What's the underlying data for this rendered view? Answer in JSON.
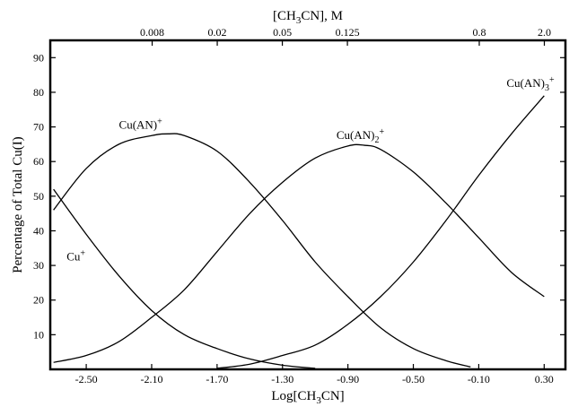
{
  "chart_data": {
    "type": "line",
    "title": "",
    "xlabel": "Log[CH3CN]",
    "xlabel_parts": [
      "Log[CH",
      "3",
      "CN]"
    ],
    "ylabel": "Percentage of Total Cu(I)",
    "top_xlabel": "[CH3CN], M",
    "top_xlabel_parts": [
      "[CH",
      "3",
      "CN], M"
    ],
    "xlim": [
      -2.72,
      0.43
    ],
    "ylim": [
      0,
      95
    ],
    "x_ticks": [
      -2.5,
      -2.1,
      -1.7,
      -1.3,
      -0.9,
      -0.5,
      -0.1,
      0.3
    ],
    "x_tick_labels": [
      "-2.50",
      "-2.10",
      "-1.70",
      "-1.30",
      "-0.90",
      "-0.50",
      "-0.10",
      "0.30"
    ],
    "y_ticks": [
      10,
      20,
      30,
      40,
      50,
      60,
      70,
      80,
      90
    ],
    "y_tick_labels": [
      "10",
      "20",
      "30",
      "40",
      "50",
      "60",
      "70",
      "80",
      "90"
    ],
    "top_ticks": [
      {
        "label": "0.008",
        "value": 0.008
      },
      {
        "label": "0.02",
        "value": 0.02
      },
      {
        "label": "0.05",
        "value": 0.05
      },
      {
        "label": "0.125",
        "value": 0.125
      },
      {
        "label": "0.8",
        "value": 0.8
      },
      {
        "label": "2.0",
        "value": 2.0
      }
    ],
    "grid": false,
    "legend": "none",
    "series": [
      {
        "name": "Cu+",
        "label_parts": [
          {
            "t": "Cu"
          },
          {
            "t": "+",
            "sup": true
          }
        ],
        "label_at": [
          -2.62,
          31.5
        ],
        "x": [
          -2.7,
          -2.5,
          -2.3,
          -2.1,
          -1.9,
          -1.7,
          -1.5,
          -1.3,
          -1.1
        ],
        "y": [
          52,
          39,
          27,
          17,
          10,
          6,
          3,
          1.2,
          0.3
        ]
      },
      {
        "name": "Cu(AN)+",
        "label_parts": [
          {
            "t": "Cu(AN)"
          },
          {
            "t": "+",
            "sup": true
          }
        ],
        "label_at": [
          -2.3,
          69.5
        ],
        "x": [
          -2.7,
          -2.5,
          -2.3,
          -2.1,
          -2.0,
          -1.9,
          -1.7,
          -1.5,
          -1.3,
          -1.1,
          -0.9,
          -0.7,
          -0.5,
          -0.3,
          -0.15
        ],
        "y": [
          46,
          58,
          65,
          67.5,
          68,
          67.5,
          63,
          54,
          43,
          31,
          21,
          12,
          6,
          2.5,
          0.7
        ]
      },
      {
        "name": "Cu(AN)2+",
        "label_parts": [
          {
            "t": "Cu(AN)"
          },
          {
            "t": "2",
            "sub": true
          },
          {
            "t": "+",
            "sup": true
          }
        ],
        "label_at": [
          -0.97,
          66.5
        ],
        "x": [
          -2.7,
          -2.5,
          -2.3,
          -2.1,
          -1.9,
          -1.7,
          -1.5,
          -1.3,
          -1.1,
          -0.9,
          -0.8,
          -0.7,
          -0.5,
          -0.3,
          -0.1,
          0.1,
          0.3
        ],
        "y": [
          2,
          4,
          8,
          15,
          23,
          34,
          45,
          54,
          61,
          64.5,
          64.7,
          63.5,
          57,
          48,
          38,
          28,
          21
        ]
      },
      {
        "name": "Cu(AN)3+",
        "label_parts": [
          {
            "t": "Cu(AN)"
          },
          {
            "t": "3",
            "sub": true
          },
          {
            "t": "+",
            "sup": true
          }
        ],
        "label_at": [
          0.07,
          81.5
        ],
        "x": [
          -1.7,
          -1.5,
          -1.3,
          -1.1,
          -0.9,
          -0.7,
          -0.5,
          -0.3,
          -0.1,
          0.1,
          0.3
        ],
        "y": [
          0.3,
          1.5,
          4,
          7,
          13,
          21,
          31,
          43,
          56,
          68,
          79
        ]
      }
    ]
  }
}
